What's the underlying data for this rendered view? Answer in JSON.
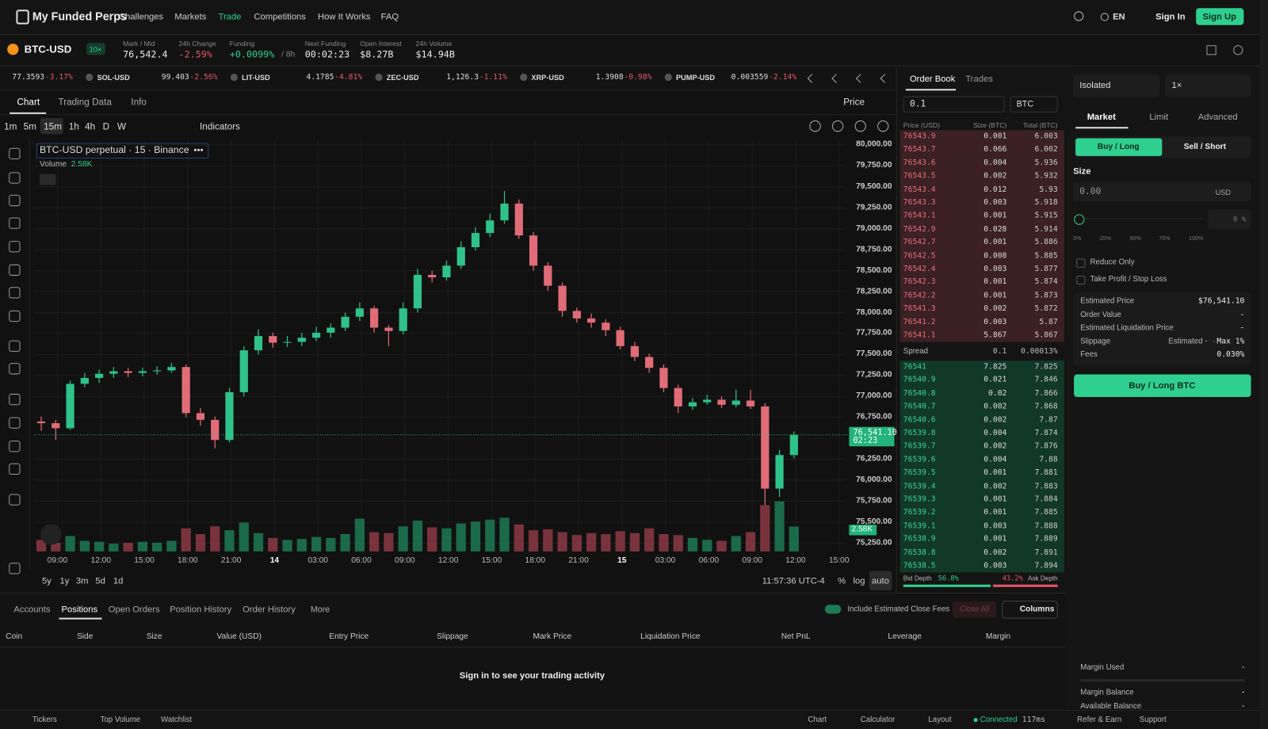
{
  "nav": {
    "brand": "My Funded Perps",
    "links": [
      "Challenges",
      "Markets",
      "Trade",
      "Competitions",
      "How It Works",
      "FAQ"
    ],
    "language": "EN",
    "sign_in": "Sign In",
    "sign_up": "Sign Up"
  },
  "market": {
    "symbol": "BTC-USD",
    "leverage": "10×",
    "stats": [
      {
        "label": "Mark / Mid",
        "value": "76,542.4"
      },
      {
        "label": "24h Change",
        "value": "-2.59%"
      },
      {
        "label": "Funding",
        "value": "+0.0099%",
        "extra": "/ 8h"
      },
      {
        "label": "Next Funding",
        "value": "00:02:23"
      },
      {
        "label": "Open Interest",
        "value": "$8.27B"
      },
      {
        "label": "24h Volume",
        "value": "$14.94B"
      }
    ]
  },
  "ticker": [
    {
      "price": "77.3593",
      "change": "-3.17%"
    },
    {
      "symbol": "SOL-USD",
      "price": "99.403",
      "change": "-2.56%"
    },
    {
      "symbol": "LIT-USD",
      "price": "4.1785",
      "change": "-4.81%"
    },
    {
      "symbol": "ZEC-USD",
      "price": "1,126.3",
      "change": "-1.11%"
    },
    {
      "symbol": "XRP-USD",
      "price": "1.3908",
      "change": "-0.98%"
    },
    {
      "symbol": "PUMP-USD",
      "price": "0.003559",
      "change": "-2.14%"
    }
  ],
  "chart_tabs": [
    "Chart",
    "Trading Data",
    "Info"
  ],
  "price_toggle": "Price",
  "intervals": [
    "1m",
    "5m",
    "15m",
    "1h",
    "4h",
    "D",
    "W"
  ],
  "indicators": "Indicators",
  "price_chart": {
    "type": "candlestick",
    "legend": "BTC-USD perpetual · 15 · Binance",
    "volume_label": "Volume",
    "volume_value": "2.58K",
    "ylim": [
      75150,
      80070
    ],
    "yticks": [
      {
        "value": 80000,
        "label": "80,000.00"
      },
      {
        "value": 79750,
        "label": "79,750.00"
      },
      {
        "value": 79500,
        "label": "79,500.00"
      },
      {
        "value": 79250,
        "label": "79,250.00"
      },
      {
        "value": 79000,
        "label": "79,000.00"
      },
      {
        "value": 78750,
        "label": "78,750.00"
      },
      {
        "value": 78500,
        "label": "78,500.00"
      },
      {
        "value": 78250,
        "label": "78,250.00"
      },
      {
        "value": 78000,
        "label": "78,000.00"
      },
      {
        "value": 77750,
        "label": "77,750.00"
      },
      {
        "value": 77500,
        "label": "77,500.00"
      },
      {
        "value": 77250,
        "label": "77,250.00"
      },
      {
        "value": 77000,
        "label": "77,000.00"
      },
      {
        "value": 76750,
        "label": "76,750.00"
      },
      {
        "value": 76500,
        "label": "76,500.00"
      },
      {
        "value": 76250,
        "label": "76,250.00"
      },
      {
        "value": 76000,
        "label": "76,000.00"
      },
      {
        "value": 75750,
        "label": "75,750.00"
      },
      {
        "value": 75500,
        "label": "75,500.00"
      },
      {
        "value": 75250,
        "label": "75,250.00"
      }
    ],
    "x_labels": [
      "09:00",
      "12:00",
      "15:00",
      "18:00",
      "21:00",
      "14",
      "03:00",
      "06:00",
      "09:00",
      "12:00",
      "15:00",
      "18:00",
      "21:00",
      "15",
      "03:00",
      "06:00",
      "09:00",
      "12:00",
      "15:00"
    ],
    "candles": [
      [
        76700,
        76760,
        76590,
        76680
      ],
      [
        76680,
        76720,
        76480,
        76620
      ],
      [
        76620,
        77190,
        76600,
        77150
      ],
      [
        77150,
        77280,
        77110,
        77220
      ],
      [
        77220,
        77320,
        77160,
        77270
      ],
      [
        77270,
        77350,
        77220,
        77300
      ],
      [
        77300,
        77340,
        77230,
        77280
      ],
      [
        77280,
        77340,
        77240,
        77300
      ],
      [
        77300,
        77360,
        77260,
        77310
      ],
      [
        77310,
        77400,
        77280,
        77350
      ],
      [
        77350,
        77380,
        76750,
        76800
      ],
      [
        76800,
        76860,
        76650,
        76720
      ],
      [
        76720,
        76760,
        76380,
        76480
      ],
      [
        76480,
        77100,
        76450,
        77050
      ],
      [
        77050,
        77600,
        77000,
        77550
      ],
      [
        77550,
        77800,
        77500,
        77720
      ],
      [
        77720,
        77760,
        77580,
        77640
      ],
      [
        77640,
        77720,
        77590,
        77650
      ],
      [
        77650,
        77760,
        77600,
        77700
      ],
      [
        77700,
        77830,
        77660,
        77760
      ],
      [
        77760,
        77870,
        77700,
        77820
      ],
      [
        77820,
        78000,
        77780,
        77950
      ],
      [
        77950,
        78120,
        77900,
        78050
      ],
      [
        78050,
        78080,
        77760,
        77820
      ],
      [
        77820,
        77850,
        77600,
        77780
      ],
      [
        77780,
        78120,
        77740,
        78050
      ],
      [
        78050,
        78520,
        78000,
        78450
      ],
      [
        78450,
        78500,
        78360,
        78420
      ],
      [
        78420,
        78620,
        78380,
        78560
      ],
      [
        78560,
        78850,
        78520,
        78780
      ],
      [
        78780,
        79020,
        78740,
        78950
      ],
      [
        78950,
        79180,
        78900,
        79100
      ],
      [
        79100,
        79450,
        79060,
        79300
      ],
      [
        79300,
        79350,
        78880,
        78920
      ],
      [
        78920,
        78960,
        78500,
        78560
      ],
      [
        78560,
        78600,
        78260,
        78320
      ],
      [
        78320,
        78360,
        77950,
        78020
      ],
      [
        78020,
        78060,
        77880,
        77930
      ],
      [
        77930,
        77990,
        77820,
        77880
      ],
      [
        77880,
        77920,
        77720,
        77790
      ],
      [
        77790,
        77830,
        77560,
        77600
      ],
      [
        77600,
        77650,
        77420,
        77470
      ],
      [
        77470,
        77510,
        77280,
        77340
      ],
      [
        77340,
        77380,
        77050,
        77100
      ],
      [
        77100,
        77140,
        76800,
        76880
      ],
      [
        76880,
        76980,
        76840,
        76930
      ],
      [
        76930,
        77020,
        76900,
        76960
      ],
      [
        76960,
        77000,
        76860,
        76900
      ],
      [
        76900,
        77080,
        76870,
        76950
      ],
      [
        76950,
        77080,
        76850,
        76880
      ],
      [
        76880,
        76920,
        75700,
        75900
      ],
      [
        75900,
        76360,
        75800,
        76300
      ],
      [
        76300,
        76580,
        76260,
        76541
      ]
    ],
    "volumes": [
      1.2,
      0.9,
      1.6,
      1.1,
      1.0,
      0.8,
      0.9,
      1.0,
      0.9,
      1.1,
      2.4,
      1.8,
      2.6,
      2.2,
      3.0,
      1.9,
      1.4,
      1.2,
      1.3,
      1.5,
      1.4,
      1.8,
      3.4,
      2.0,
      1.9,
      2.6,
      3.2,
      2.5,
      2.4,
      2.9,
      3.1,
      3.3,
      3.5,
      2.8,
      2.2,
      2.3,
      2.0,
      1.7,
      1.9,
      1.8,
      2.1,
      1.9,
      2.4,
      1.8,
      1.7,
      1.4,
      1.2,
      1.1,
      1.6,
      2.0,
      4.8,
      5.2,
      2.58
    ],
    "last_price": "76,541.10",
    "countdown": "02:23",
    "ranges": [
      "5y",
      "1y",
      "3m",
      "5d",
      "1d"
    ],
    "clock": "11:57:36 UTC-4",
    "scale_options": [
      "%",
      "log",
      "auto"
    ]
  },
  "order_book": {
    "tabs": [
      "Order Book",
      "Trades"
    ],
    "tick_size": "0.1",
    "unit": "BTC",
    "headers": [
      "Price (USD)",
      "Size (BTC)",
      "Total (BTC)"
    ],
    "asks": [
      [
        "76543.9",
        "0.001",
        "6.003"
      ],
      [
        "76543.7",
        "0.066",
        "6.002"
      ],
      [
        "76543.6",
        "0.004",
        "5.936"
      ],
      [
        "76543.5",
        "0.002",
        "5.932"
      ],
      [
        "76543.4",
        "0.012",
        "5.93"
      ],
      [
        "76543.3",
        "0.003",
        "5.918"
      ],
      [
        "76543.1",
        "0.001",
        "5.915"
      ],
      [
        "76542.9",
        "0.028",
        "5.914"
      ],
      [
        "76542.7",
        "0.001",
        "5.886"
      ],
      [
        "76542.5",
        "0.008",
        "5.885"
      ],
      [
        "76542.4",
        "0.003",
        "5.877"
      ],
      [
        "76542.3",
        "0.001",
        "5.874"
      ],
      [
        "76542.2",
        "0.001",
        "5.873"
      ],
      [
        "76541.3",
        "0.002",
        "5.872"
      ],
      [
        "76541.2",
        "0.003",
        "5.87"
      ],
      [
        "76541.1",
        "5.867",
        "5.867"
      ]
    ],
    "spread": {
      "label": "Spread",
      "value": "0.1",
      "percent": "0.00013%"
    },
    "bids": [
      [
        "76541",
        "7.825",
        "7.825"
      ],
      [
        "76540.9",
        "0.021",
        "7.846"
      ],
      [
        "76540.8",
        "0.02",
        "7.866"
      ],
      [
        "76540.7",
        "0.002",
        "7.868"
      ],
      [
        "76540.6",
        "0.002",
        "7.87"
      ],
      [
        "76539.8",
        "0.004",
        "7.874"
      ],
      [
        "76539.7",
        "0.002",
        "7.876"
      ],
      [
        "76539.6",
        "0.004",
        "7.88"
      ],
      [
        "76539.5",
        "0.001",
        "7.881"
      ],
      [
        "76539.4",
        "0.002",
        "7.883"
      ],
      [
        "76539.3",
        "0.001",
        "7.884"
      ],
      [
        "76539.2",
        "0.001",
        "7.885"
      ],
      [
        "76539.1",
        "0.003",
        "7.888"
      ],
      [
        "76538.9",
        "0.001",
        "7.889"
      ],
      [
        "76538.8",
        "0.002",
        "7.891"
      ],
      [
        "76538.5",
        "0.003",
        "7.894"
      ]
    ],
    "bid_depth_label": "Bid Depth",
    "bid_depth": "56.8%",
    "ask_depth": "43.2%",
    "ask_depth_label": "Ask Depth"
  },
  "trade": {
    "margin_mode": "Isolated",
    "leverage": "1×",
    "order_types": [
      "Market",
      "Limit",
      "Advanced"
    ],
    "sides": [
      "Buy / Long",
      "Sell / Short"
    ],
    "size_label": "Size",
    "size_placeholder": "0.00",
    "size_unit": "USD",
    "percent_input": "0 %",
    "slider_marks": [
      "0%",
      "25%",
      "50%",
      "75%",
      "100%"
    ],
    "options": [
      "Reduce Only",
      "Take Profit / Stop Loss"
    ],
    "details": [
      {
        "label": "Estimated Price",
        "value": "$76,541.10"
      },
      {
        "label": "Order Value",
        "value": "-"
      },
      {
        "label": "Estimated Liquidation Price",
        "value": "-"
      },
      {
        "label": "Slippage",
        "note": "Estimated -",
        "separator": "·",
        "value": "Max 1%"
      },
      {
        "label": "Fees",
        "value": "0.030%"
      }
    ],
    "submit": "Buy / Long BTC",
    "account": [
      {
        "label": "Margin Used",
        "value": "-"
      },
      {
        "label": "Margin Balance",
        "value": "-"
      },
      {
        "label": "Available Balance",
        "value": "-"
      }
    ]
  },
  "positions": {
    "tabs": [
      "Accounts",
      "Positions",
      "Open Orders",
      "Position History",
      "Order History"
    ],
    "more": "More",
    "close_fees": "Include Estimated Close Fees",
    "close_all": "Close All",
    "columns": "Columns",
    "headers": [
      "Coin",
      "Side",
      "Size",
      "Value (USD)",
      "Entry Price",
      "Slippage",
      "Mark Price",
      "Liquidation Price",
      "Net PnL",
      "Leverage",
      "Margin"
    ],
    "empty": "Sign in to see your trading activity"
  },
  "footer": {
    "left": [
      "Tickers",
      "Top Volume",
      "Watchlist"
    ],
    "right": [
      "Chart",
      "Calculator",
      "Layout"
    ],
    "status": "Connected",
    "latency": "117ms",
    "links": [
      "Refer & Earn",
      "Support"
    ]
  }
}
